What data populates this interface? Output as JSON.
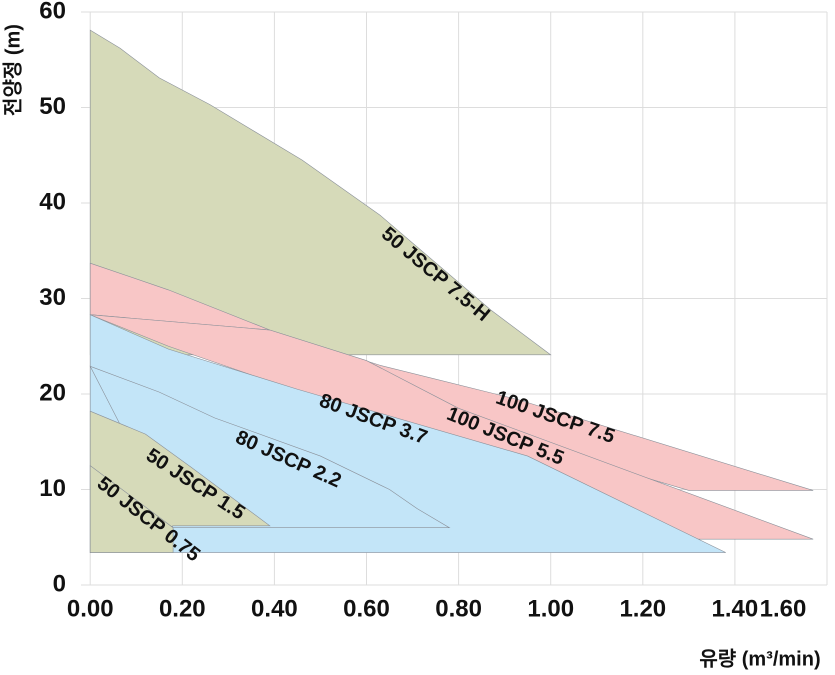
{
  "chart_data": {
    "type": "polygon",
    "xlabel": "유량 (m³/min)",
    "ylabel": "전양정 (m)",
    "xlim": [
      -0.02,
      1.6
    ],
    "ylim": [
      0,
      60
    ],
    "xticks": [
      {
        "value": 0,
        "label": "0.00"
      },
      {
        "value": 0.2,
        "label": "0.20"
      },
      {
        "value": 0.4,
        "label": "0.40"
      },
      {
        "value": 0.6,
        "label": "0.60"
      },
      {
        "value": 0.8,
        "label": "0.80"
      },
      {
        "value": 1.0,
        "label": "1.00"
      },
      {
        "value": 1.2,
        "label": "1.20"
      },
      {
        "value": 1.4,
        "label": "1.40"
      },
      {
        "value": 1.6,
        "label": "1.60"
      }
    ],
    "yticks": [
      0,
      10,
      20,
      30,
      40,
      50,
      60
    ],
    "grid": true,
    "series": [
      {
        "name": "50 JSCP 7.5-H",
        "color": "#d6dab9",
        "x": [
          0,
          0.065,
          0.15,
          0.26,
          0.46,
          0.63,
          0.87,
          1.0,
          0
        ],
        "y": [
          58.1,
          56.2,
          53.1,
          50.3,
          44.5,
          38.7,
          28.8,
          24.1,
          24.1
        ]
      },
      {
        "name": "100 JSCP 7.5",
        "color": "#f8c6c6",
        "x": [
          0,
          0.17,
          0.39,
          0.63,
          0.93,
          1.57,
          1.3,
          0.78,
          0.39,
          0
        ],
        "y": [
          33.7,
          30.9,
          26.7,
          23.0,
          19.4,
          9.9,
          9.9,
          17.3,
          26.7,
          28.3
        ]
      },
      {
        "name": "100 JSCP 5.5",
        "color": "#f8c6c6",
        "x": [
          0,
          0.39,
          0.6,
          0.8,
          1.57,
          1.3,
          0.95,
          0.17
        ],
        "y": [
          28.3,
          26.7,
          23.5,
          18.5,
          4.8,
          4.8,
          12.0,
          25.0
        ]
      },
      {
        "name": "80 JSCP 3.7",
        "color": "#c3e5f8",
        "x": [
          0,
          0.17,
          0.45,
          0.95,
          1.38,
          0
        ],
        "y": [
          28.3,
          24.7,
          20.5,
          13.5,
          3.4,
          3.4
        ]
      },
      {
        "name": "80 JSCP 2.2",
        "color": "#c3e5f8",
        "x": [
          0,
          0.15,
          0.27,
          0.5,
          0.65,
          0.71,
          0.78,
          0.18
        ],
        "y": [
          22.9,
          20.2,
          17.5,
          13.5,
          10.0,
          8.0,
          6.0,
          6.0
        ]
      },
      {
        "name": "50 JSCP 1.5",
        "color": "#d6dab9",
        "x": [
          0,
          0.12,
          0.22,
          0.39,
          0.18,
          0
        ],
        "y": [
          18.2,
          15.8,
          12.3,
          6.2,
          6.2,
          3.4
        ]
      },
      {
        "name": "50 JSCP 0.75",
        "color": "#d6dab9",
        "x": [
          0,
          0.18,
          0.18,
          0
        ],
        "y": [
          12.5,
          6.0,
          3.4,
          3.4
        ]
      }
    ]
  }
}
